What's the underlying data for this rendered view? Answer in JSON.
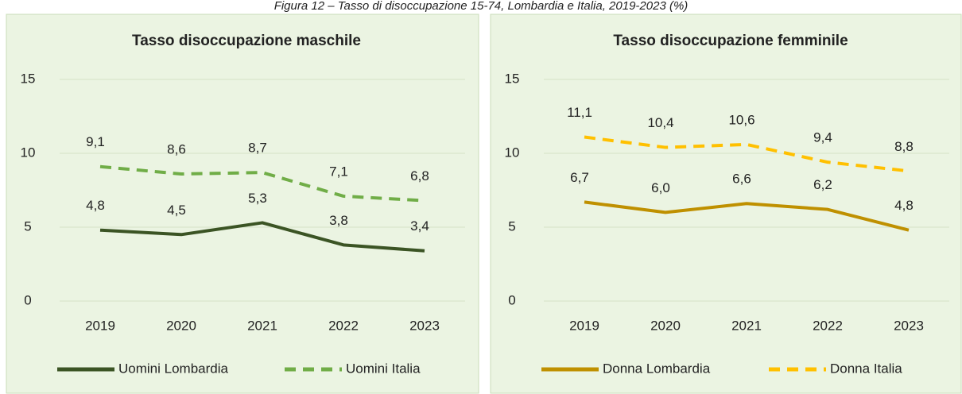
{
  "caption": "Figura 12 – Tasso di disoccupazione 15-74, Lombardia e Italia, 2019-2023 (%)",
  "chart_data": [
    {
      "type": "line",
      "title": "Tasso disoccupazione maschile",
      "categories": [
        "2019",
        "2020",
        "2021",
        "2022",
        "2023"
      ],
      "series": [
        {
          "name": "Uomini Lombardia",
          "color": "#3b5424",
          "dashed": false,
          "values": [
            4.8,
            4.5,
            5.3,
            3.8,
            3.4
          ],
          "value_labels": [
            "4,8",
            "4,5",
            "5,3",
            "3,8",
            "3,4"
          ]
        },
        {
          "name": "Uomini Italia",
          "color": "#70ad47",
          "dashed": true,
          "values": [
            9.1,
            8.6,
            8.7,
            7.1,
            6.8
          ],
          "value_labels": [
            "9,1",
            "8,6",
            "8,7",
            "7,1",
            "6,8"
          ]
        }
      ],
      "ylim": [
        0,
        15
      ],
      "yticks": [
        0,
        5,
        10,
        15
      ],
      "grid": true
    },
    {
      "type": "line",
      "title": "Tasso disoccupazione femminile",
      "categories": [
        "2019",
        "2020",
        "2021",
        "2022",
        "2023"
      ],
      "series": [
        {
          "name": "Donna Lombardia",
          "color": "#bf9000",
          "dashed": false,
          "values": [
            6.7,
            6.0,
            6.6,
            6.2,
            4.8
          ],
          "value_labels": [
            "6,7",
            "6,0",
            "6,6",
            "6,2",
            "4,8"
          ]
        },
        {
          "name": "Donna Italia",
          "color": "#ffc000",
          "dashed": true,
          "values": [
            11.1,
            10.4,
            10.6,
            9.4,
            8.8
          ],
          "value_labels": [
            "11,1",
            "10,4",
            "10,6",
            "9,4",
            "8,8"
          ]
        }
      ],
      "ylim": [
        0,
        15
      ],
      "yticks": [
        0,
        5,
        10,
        15
      ],
      "grid": true
    }
  ]
}
